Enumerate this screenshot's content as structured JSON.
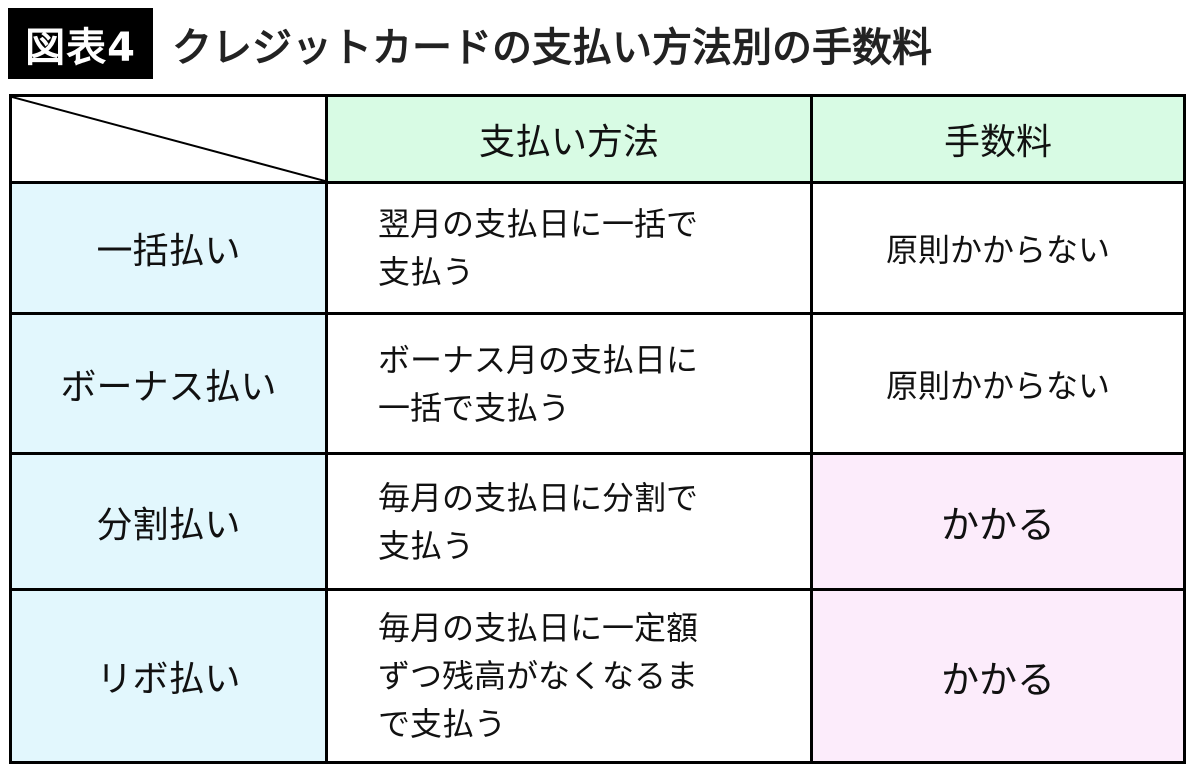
{
  "figure_label": "図表4",
  "title": "クレジットカードの支払い方法別の手数料",
  "table": {
    "headers": [
      "",
      "支払い方法",
      "手数料"
    ],
    "rows": [
      {
        "name": "一括払い",
        "method": [
          "翌月の支払日に一括で",
          "支払う"
        ],
        "fee": "原則かからない",
        "fee_color": "#ffffff"
      },
      {
        "name": "ボーナス払い",
        "method": [
          "ボーナス月の支払日に",
          "一括で支払う"
        ],
        "fee": "原則かからない",
        "fee_color": "#ffffff"
      },
      {
        "name": "分割払い",
        "method": [
          "毎月の支払日に分割で",
          "支払う"
        ],
        "fee": "かかる",
        "fee_color": "#fcecfb"
      },
      {
        "name": "リボ払い",
        "method": [
          "毎月の支払日に一定額",
          "ずつ残高がなくなるま",
          "で支払う"
        ],
        "fee": "かかる",
        "fee_color": "#fcecfb"
      }
    ]
  },
  "colors": {
    "header": "#d8fbe4",
    "row_header": "#e2f7fd",
    "fee_charged": "#fcecfb"
  }
}
